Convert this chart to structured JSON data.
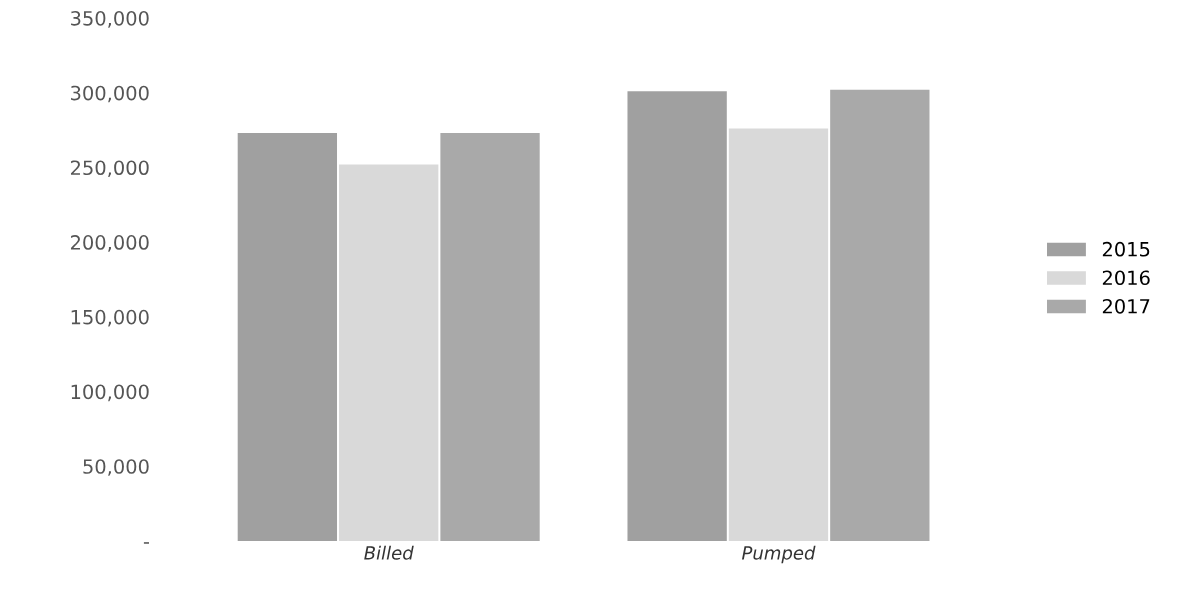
{
  "chart_data": {
    "type": "bar",
    "categories": [
      "Billed",
      "Pumped"
    ],
    "series": [
      {
        "name": "2015",
        "color": "#a0a0a0",
        "values": [
          273000,
          301000
        ]
      },
      {
        "name": "2016",
        "color": "#d9d9d9",
        "values": [
          252000,
          276000
        ]
      },
      {
        "name": "2017",
        "color": "#a9a9a9",
        "values": [
          273000,
          302000
        ]
      }
    ],
    "ylim": [
      0,
      350000
    ],
    "yticks": [
      {
        "value": 0,
        "label": "-"
      },
      {
        "value": 50000,
        "label": "50,000"
      },
      {
        "value": 100000,
        "label": "100,000"
      },
      {
        "value": 150000,
        "label": "150,000"
      },
      {
        "value": 200000,
        "label": "200,000"
      },
      {
        "value": 250000,
        "label": "250,000"
      },
      {
        "value": 300000,
        "label": "300,000"
      },
      {
        "value": 350000,
        "label": "350,000"
      }
    ],
    "grid": false,
    "legend": "right"
  }
}
